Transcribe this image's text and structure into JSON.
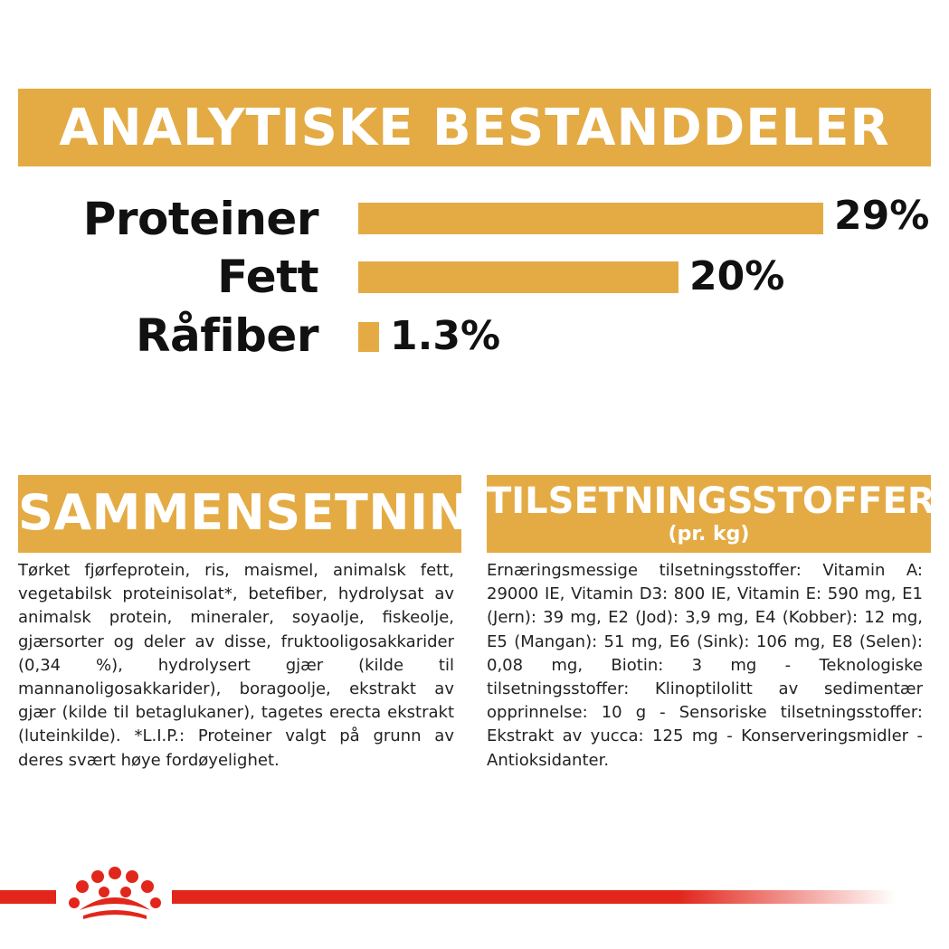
{
  "analytic": {
    "title": "ANALYTISKE BESTANDDELER",
    "items": [
      {
        "label": "Proteiner",
        "value_text": "29%",
        "value": 29
      },
      {
        "label": "Fett",
        "value_text": "20%",
        "value": 20
      },
      {
        "label": "Råfiber",
        "value_text": "1.3%",
        "value": 1.3
      }
    ]
  },
  "composition": {
    "title": "SAMMENSETNING",
    "text": "Tørket fjørfeprotein, ris, maismel, animalsk fett, vegetabilsk proteinisolat*, betefiber, hydrolysat av animalsk protein, mineraler, soyaolje, fiskeolje, gjærsorter og deler av disse, fruktooligosakkarider (0,34 %), hydrolysert gjær (kilde til mannanoligosakkarider), boragoolje, ekstrakt av gjær (kilde til betaglukaner), tagetes erecta ekstrakt (luteinkilde). *L.I.P.: Proteiner valgt på grunn av deres svært høye fordøyelighet."
  },
  "additives": {
    "title": "TILSETNINGSSTOFFER",
    "subtitle": "(pr. kg)",
    "text": "Ernæringsmessige tilsetningsstoffer: Vitamin A: 29000 IE, Vitamin D3: 800 IE, Vitamin E: 590 mg, E1 (Jern): 39 mg, E2 (Jod): 3,9 mg, E4 (Kobber): 12 mg, E5 (Mangan): 51 mg, E6 (Sink): 106 mg, E8 (Selen): 0,08 mg, Biotin: 3 mg - Teknologiske tilsetningsstoffer: Klinoptilolitt av sedimentær opprinnelse: 10 g - Sensoriske tilsetningsstoffer: Ekstrakt av yucca: 125 mg - Konserveringsmidler - Antioksidanter."
  },
  "colors": {
    "accent": "#e4ab44",
    "brand_red": "#e2261b"
  },
  "footer": {
    "logo_icon": "royal-canin-crown-icon"
  }
}
